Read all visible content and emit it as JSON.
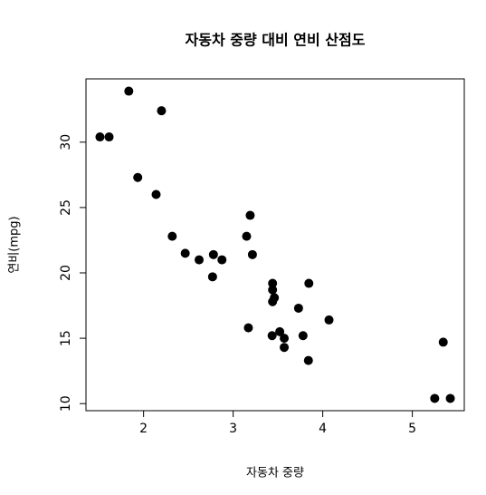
{
  "chart_data": {
    "type": "scatter",
    "title": "자동차 중량 대비 연비 산점도",
    "x_label": "자동차 중량",
    "y_label": "연비(mpg)",
    "color": "#000000",
    "x": [
      2.62,
      2.875,
      2.32,
      3.215,
      3.44,
      3.46,
      3.57,
      3.19,
      3.15,
      3.44,
      3.44,
      4.07,
      3.73,
      3.78,
      5.25,
      5.424,
      5.345,
      2.2,
      1.615,
      1.835,
      2.465,
      3.52,
      3.435,
      3.84,
      3.845,
      1.935,
      2.14,
      1.513,
      3.17,
      2.77,
      3.57,
      2.78
    ],
    "y": [
      21.0,
      21.0,
      22.8,
      21.4,
      18.7,
      18.1,
      14.3,
      24.4,
      22.8,
      19.2,
      17.8,
      16.4,
      17.3,
      15.2,
      10.4,
      10.4,
      14.7,
      32.4,
      30.4,
      33.9,
      21.5,
      15.5,
      15.2,
      13.3,
      19.2,
      27.3,
      26.0,
      30.4,
      15.8,
      19.7,
      15.0,
      21.4
    ],
    "xlim": [
      1.357,
      5.58
    ],
    "ylim": [
      9.46,
      34.84
    ],
    "xticks": [
      2,
      3,
      4,
      5
    ],
    "yticks": [
      10,
      15,
      20,
      25,
      30
    ]
  }
}
